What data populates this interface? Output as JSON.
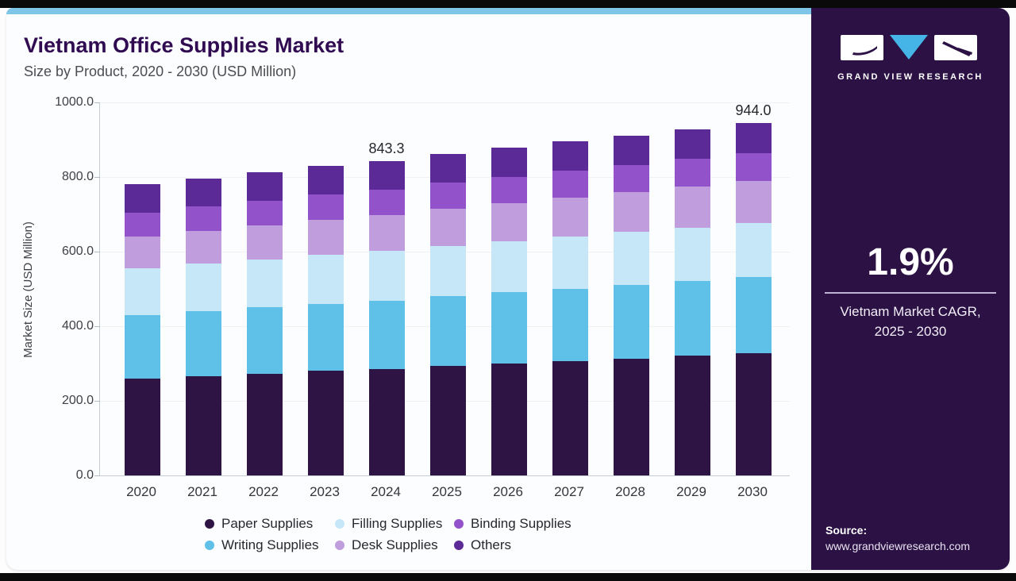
{
  "header": {
    "title": "Vietnam Office Supplies Market",
    "subtitle": "Size by Product, 2020 - 2030 (USD Million)"
  },
  "chart_data": {
    "type": "bar",
    "stacked": true,
    "title": "Vietnam Office Supplies Market",
    "subtitle": "Size by Product, 2020 - 2030 (USD Million)",
    "xlabel": "",
    "ylabel": "Market Size (USD Million)",
    "ylim": [
      0,
      1000
    ],
    "ytick_labels": [
      "0.0",
      "200.0",
      "400.0",
      "600.0",
      "800.0",
      "1000.0"
    ],
    "grid": false,
    "legend_position": "bottom",
    "categories": [
      "2020",
      "2021",
      "2022",
      "2023",
      "2024",
      "2025",
      "2026",
      "2027",
      "2028",
      "2029",
      "2030"
    ],
    "series": [
      {
        "name": "Paper Supplies",
        "color": "#2e1445",
        "values": [
          260.0,
          266.7,
          273.4,
          280.1,
          285.5,
          293.5,
          300.2,
          306.9,
          313.6,
          320.3,
          327.0
        ]
      },
      {
        "name": "Writing Supplies",
        "color": "#5fc0e8",
        "values": [
          170.0,
          173.4,
          176.8,
          180.2,
          183.6,
          187.0,
          190.4,
          193.8,
          197.2,
          200.6,
          204.0
        ]
      },
      {
        "name": "Filling Supplies",
        "color": "#c6e7f8",
        "values": [
          125.0,
          127.1,
          129.2,
          131.3,
          133.4,
          135.5,
          137.6,
          139.7,
          141.8,
          143.9,
          146.0
        ]
      },
      {
        "name": "Desk Supplies",
        "color": "#c09ede",
        "values": [
          85.0,
          87.7,
          90.4,
          93.1,
          95.8,
          98.5,
          101.2,
          103.9,
          106.6,
          109.3,
          112.0
        ]
      },
      {
        "name": "Binding Supplies",
        "color": "#9253ca",
        "values": [
          65.0,
          66.0,
          67.0,
          68.0,
          68.5,
          70.0,
          71.0,
          72.0,
          73.0,
          74.0,
          75.0
        ]
      },
      {
        "name": "Others",
        "color": "#5c2a96",
        "values": [
          75.0,
          75.5,
          76.0,
          76.5,
          76.5,
          77.5,
          78.0,
          78.5,
          79.0,
          79.5,
          80.0
        ]
      }
    ],
    "bar_total_labels": [
      {
        "category": "2024",
        "label": "843.3"
      },
      {
        "category": "2030",
        "label": "944.0"
      }
    ],
    "legend_order": [
      "Paper Supplies",
      "Filling Supplies",
      "Binding Supplies",
      "Writing Supplies",
      "Desk Supplies",
      "Others"
    ]
  },
  "sidebar": {
    "brand": "GRAND VIEW RESEARCH",
    "cagr": {
      "value": "1.9%",
      "caption_line1": "Vietnam Market CAGR,",
      "caption_line2": "2025 - 2030"
    },
    "source": {
      "label": "Source:",
      "url_text": "www.grandviewresearch.com"
    }
  },
  "colors": {
    "accent_strip": "#7ec5e8",
    "sidebar_bg": "#2b1144",
    "logo_triangle": "#45b4e6",
    "title_text": "#310b52"
  }
}
